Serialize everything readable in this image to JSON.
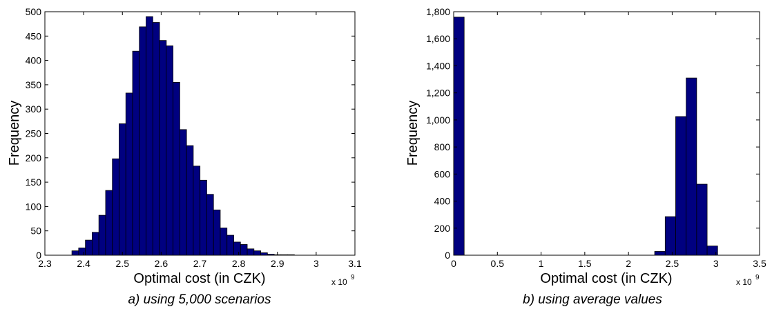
{
  "chart_data": [
    {
      "type": "bar",
      "caption": "a) using 5,000 scenarios",
      "xlabel": "Optimal cost (in CZK)",
      "ylabel": "Frequency",
      "x_multiplier": "x 10",
      "x_multiplier_exp": "9",
      "xlim": [
        2.3,
        3.1
      ],
      "ylim": [
        0,
        500
      ],
      "xticks": [
        2.3,
        2.4,
        2.5,
        2.6,
        2.7,
        2.8,
        2.9,
        3,
        3.1
      ],
      "xtick_labels": [
        "2.3",
        "2.4",
        "2.5",
        "2.6",
        "2.7",
        "2.8",
        "2.9",
        "3",
        "3.1"
      ],
      "yticks": [
        0,
        50,
        100,
        150,
        200,
        250,
        300,
        350,
        400,
        450,
        500
      ],
      "ytick_labels": [
        "0",
        "50",
        "100",
        "150",
        "200",
        "250",
        "300",
        "350",
        "400",
        "450",
        "500"
      ],
      "bin_edges": [
        2.3697,
        2.3871,
        2.4045,
        2.4219,
        2.4393,
        2.4567,
        2.4741,
        2.4915,
        2.5089,
        2.5263,
        2.5437,
        2.5611,
        2.5785,
        2.5959,
        2.6133,
        2.6307,
        2.6481,
        2.6655,
        2.6829,
        2.7003,
        2.7177,
        2.7351,
        2.7525,
        2.7699,
        2.7873,
        2.8047,
        2.8221,
        2.8395,
        2.8569,
        2.8743,
        2.8917,
        2.9091,
        2.9265,
        2.9439,
        2.9613,
        2.9787,
        2.9961,
        3.0135,
        3.0309,
        3.0483,
        3.0657,
        3.0831
      ],
      "values": [
        9,
        15,
        31,
        47,
        82,
        133,
        198,
        270,
        333,
        419,
        469,
        490,
        478,
        441,
        430,
        355,
        258,
        225,
        183,
        154,
        125,
        93,
        56,
        41,
        27,
        22,
        13,
        9,
        5,
        2,
        1,
        1,
        1,
        0,
        0,
        0,
        0,
        0,
        0,
        0,
        0
      ],
      "bar_color": "#000080",
      "grid": false
    },
    {
      "type": "bar",
      "caption": "b) using average values",
      "xlabel": "Optimal cost (in CZK)",
      "ylabel": "Frequency",
      "x_multiplier": "x 10",
      "x_multiplier_exp": "9",
      "xlim": [
        0,
        3.5
      ],
      "ylim": [
        0,
        1800
      ],
      "xticks": [
        0,
        0.5,
        1,
        1.5,
        2,
        2.5,
        3,
        3.5
      ],
      "xtick_labels": [
        "0",
        "0.5",
        "1",
        "1.5",
        "2",
        "2.5",
        "3",
        "3.5"
      ],
      "yticks": [
        0,
        200,
        400,
        600,
        800,
        1000,
        1200,
        1400,
        1600,
        1800
      ],
      "ytick_labels": [
        "0",
        "200",
        "400",
        "600",
        "800",
        "1,000",
        "1,200",
        "1,400",
        "1,600",
        "1,800"
      ],
      "bin_edges": [
        0,
        0.12,
        2.3,
        2.42,
        2.54,
        2.66,
        2.78,
        2.9,
        3.02
      ],
      "values": [
        1760,
        0,
        28,
        285,
        1025,
        1310,
        525,
        68
      ],
      "bar_color": "#000080",
      "grid": false
    }
  ]
}
